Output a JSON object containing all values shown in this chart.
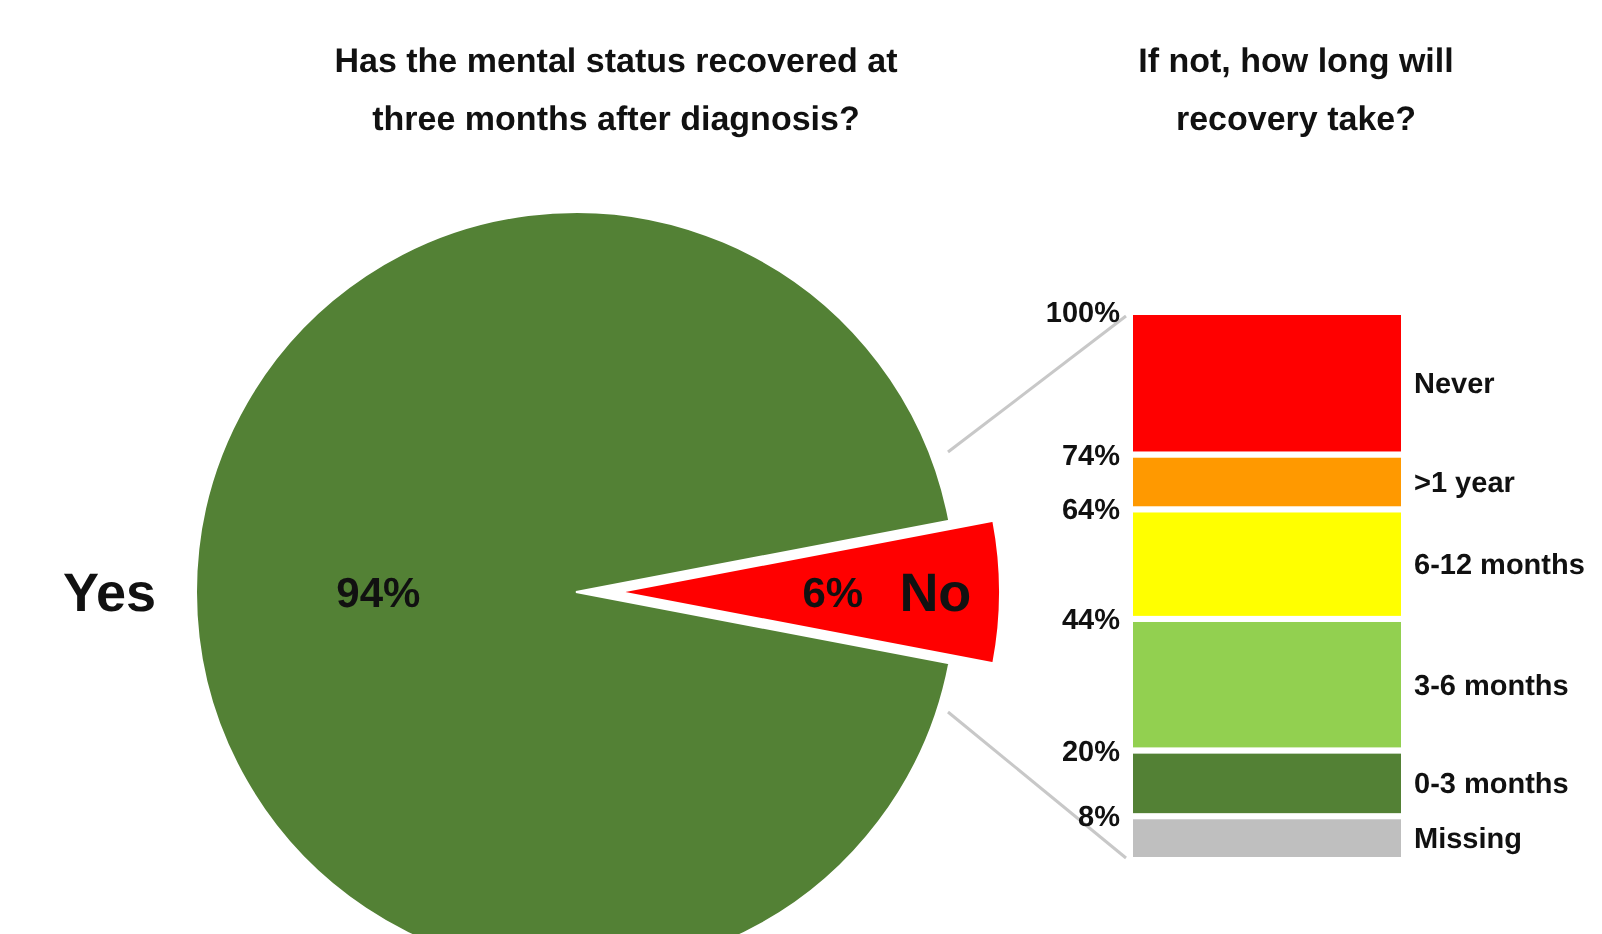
{
  "chart_data": [
    {
      "type": "pie",
      "title": "Has the mental status recovered at three months after diagnosis?",
      "categories": [
        "Yes",
        "No"
      ],
      "values": [
        94,
        6
      ],
      "colors": [
        "#538135",
        "#ff0000"
      ],
      "value_labels": [
        "94%",
        "6%"
      ]
    },
    {
      "type": "bar",
      "title": "If not, how long will recovery take?",
      "stacked": true,
      "categories": [
        null
      ],
      "ylim": [
        0,
        100
      ],
      "yticks": [
        {
          "value": 8,
          "label": "8%"
        },
        {
          "value": 20,
          "label": "20%"
        },
        {
          "value": 44,
          "label": "44%"
        },
        {
          "value": 64,
          "label": "64%"
        },
        {
          "value": 74,
          "label": "74%"
        },
        {
          "value": 100,
          "label": "100%"
        }
      ],
      "series": [
        {
          "name": "Missing",
          "color": "#bfbfbf",
          "values": [
            8
          ]
        },
        {
          "name": "0-3 months",
          "color": "#538135",
          "values": [
            12
          ]
        },
        {
          "name": "3-6 months",
          "color": "#92d050",
          "values": [
            24
          ]
        },
        {
          "name": "6-12 months",
          "color": "#ffff00",
          "values": [
            20
          ]
        },
        {
          "name": ">1 year",
          "color": "#ff9900",
          "values": [
            10
          ]
        },
        {
          "name": "Never",
          "color": "#ff0000",
          "values": [
            26
          ]
        }
      ]
    }
  ]
}
